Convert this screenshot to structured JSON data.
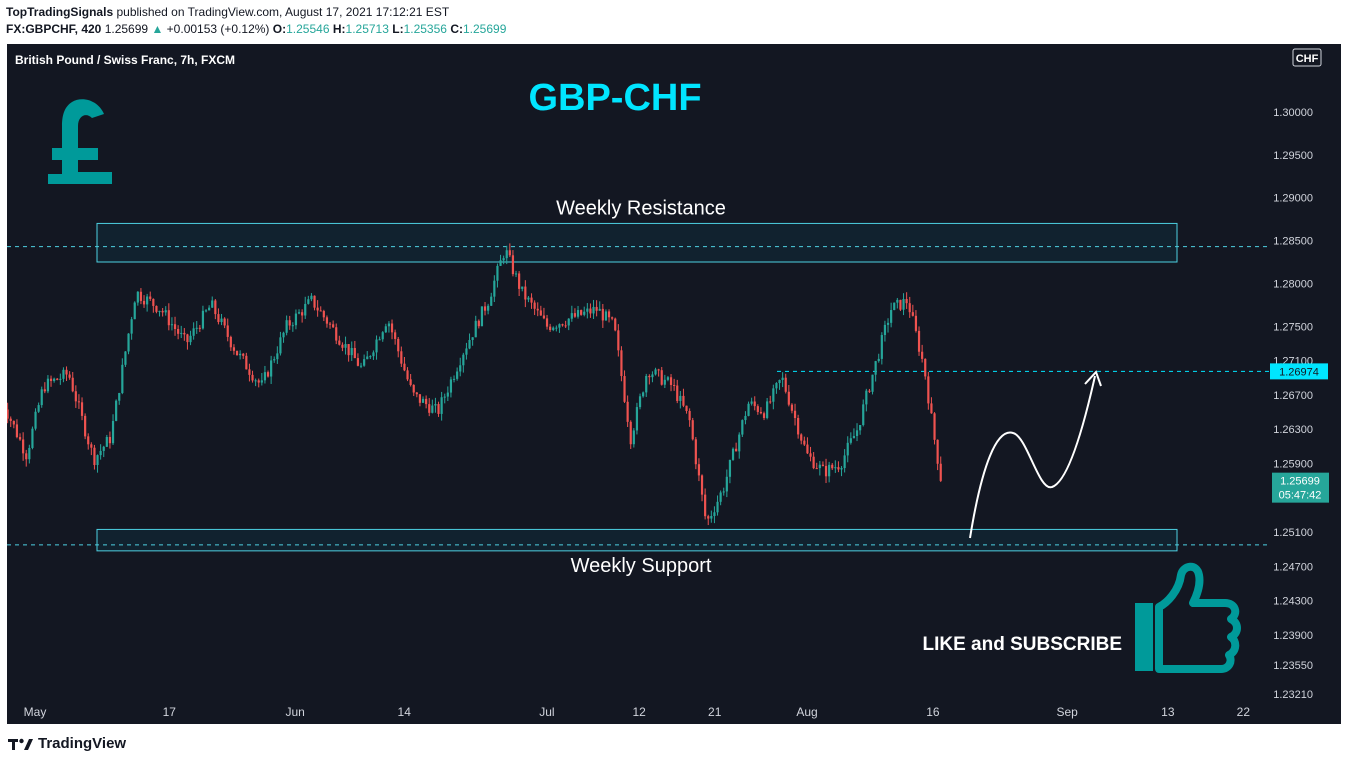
{
  "header": {
    "author": "TopTradingSignals",
    "published_text": "published on TradingView.com, August 17, 2021 17:12:21 EST",
    "symbol": "FX:GBPCHF, 420",
    "last": "1.25699",
    "change_arrow": "▲",
    "change": "+0.00153 (+0.12%)",
    "o_label": "O:",
    "o_value": "1.25546",
    "h_label": "H:",
    "h_value": "1.25713",
    "l_label": "L:",
    "l_value": "1.25356",
    "c_label": "C:",
    "c_value": "1.25699"
  },
  "chart_data": {
    "type": "candlestick",
    "instrument_label": "British Pound / Swiss Franc, 7h, FXCM",
    "title": "GBP-CHF",
    "currency_badge": "CHF",
    "y_range": [
      1.2321,
      1.3063
    ],
    "y_ticks": [
      "1.30000",
      "1.29500",
      "1.29000",
      "1.28500",
      "1.28000",
      "1.27500",
      "1.27100",
      "1.26700",
      "1.26300",
      "1.25900",
      "1.25500",
      "1.25100",
      "1.24700",
      "1.24300",
      "1.23900",
      "1.23550",
      "1.23210"
    ],
    "x_ticks": [
      {
        "label": "May",
        "date": "2021-05-01"
      },
      {
        "label": "17",
        "date": "2021-05-17"
      },
      {
        "label": "Jun",
        "date": "2021-06-01"
      },
      {
        "label": "14",
        "date": "2021-06-14"
      },
      {
        "label": "Jul",
        "date": "2021-07-01"
      },
      {
        "label": "12",
        "date": "2021-07-12"
      },
      {
        "label": "21",
        "date": "2021-07-21"
      },
      {
        "label": "Aug",
        "date": "2021-08-01"
      },
      {
        "label": "16",
        "date": "2021-08-16"
      },
      {
        "label": "Sep",
        "date": "2021-09-01"
      },
      {
        "label": "13",
        "date": "2021-09-13"
      },
      {
        "label": "22",
        "date": "2021-09-22"
      }
    ],
    "price_path": [
      {
        "date": "2021-04-27",
        "close": 1.2665
      },
      {
        "date": "2021-04-30",
        "close": 1.26
      },
      {
        "date": "2021-05-02",
        "close": 1.268
      },
      {
        "date": "2021-05-05",
        "close": 1.2695
      },
      {
        "date": "2021-05-08",
        "close": 1.2595
      },
      {
        "date": "2021-05-10",
        "close": 1.262
      },
      {
        "date": "2021-05-13",
        "close": 1.279
      },
      {
        "date": "2021-05-16",
        "close": 1.277
      },
      {
        "date": "2021-05-19",
        "close": 1.273
      },
      {
        "date": "2021-05-22",
        "close": 1.2775
      },
      {
        "date": "2021-05-25",
        "close": 1.272
      },
      {
        "date": "2021-05-28",
        "close": 1.268
      },
      {
        "date": "2021-05-31",
        "close": 1.275
      },
      {
        "date": "2021-06-03",
        "close": 1.278
      },
      {
        "date": "2021-06-06",
        "close": 1.274
      },
      {
        "date": "2021-06-09",
        "close": 1.27
      },
      {
        "date": "2021-06-12",
        "close": 1.276
      },
      {
        "date": "2021-06-15",
        "close": 1.267
      },
      {
        "date": "2021-06-18",
        "close": 1.265
      },
      {
        "date": "2021-06-21",
        "close": 1.272
      },
      {
        "date": "2021-06-24",
        "close": 1.278
      },
      {
        "date": "2021-06-26",
        "close": 1.284
      },
      {
        "date": "2021-06-28",
        "close": 1.279
      },
      {
        "date": "2021-07-01",
        "close": 1.275
      },
      {
        "date": "2021-07-04",
        "close": 1.276
      },
      {
        "date": "2021-07-07",
        "close": 1.277
      },
      {
        "date": "2021-07-09",
        "close": 1.275
      },
      {
        "date": "2021-07-11",
        "close": 1.262
      },
      {
        "date": "2021-07-13",
        "close": 1.27
      },
      {
        "date": "2021-07-16",
        "close": 1.268
      },
      {
        "date": "2021-07-18",
        "close": 1.264
      },
      {
        "date": "2021-07-20",
        "close": 1.252
      },
      {
        "date": "2021-07-22",
        "close": 1.256
      },
      {
        "date": "2021-07-25",
        "close": 1.266
      },
      {
        "date": "2021-07-27",
        "close": 1.265
      },
      {
        "date": "2021-07-29",
        "close": 1.269
      },
      {
        "date": "2021-08-01",
        "close": 1.26
      },
      {
        "date": "2021-08-03",
        "close": 1.258
      },
      {
        "date": "2021-08-05",
        "close": 1.259
      },
      {
        "date": "2021-08-07",
        "close": 1.263
      },
      {
        "date": "2021-08-09",
        "close": 1.27
      },
      {
        "date": "2021-08-11",
        "close": 1.277
      },
      {
        "date": "2021-08-13",
        "close": 1.278
      },
      {
        "date": "2021-08-15",
        "close": 1.27
      },
      {
        "date": "2021-08-16",
        "close": 1.263
      },
      {
        "date": "2021-08-17",
        "close": 1.257
      }
    ],
    "resistance_zone": {
      "label": "Weekly Resistance",
      "from": 1.2825,
      "to": 1.287,
      "line": 1.2843
    },
    "support_zone": {
      "label": "Weekly Support",
      "from": 1.2488,
      "to": 1.2513,
      "line": 1.2495
    },
    "horizontal_line": {
      "value": 1.26974,
      "label": "1.26974"
    },
    "last_price": {
      "value": 1.25699,
      "label": "1.25699",
      "countdown": "05:47:42"
    },
    "annotation": "LIKE and SUBSCRIBE"
  },
  "colors": {
    "background": "#131722",
    "up": "#26a69a",
    "down": "#ef5350",
    "cyan": "#00e5ff",
    "zone_border": "#4dd0e1",
    "logo_teal": "#009a9a",
    "last_badge": "#26a69a"
  },
  "icons": {
    "currency": "pound-sign-icon",
    "thumb": "thumbs-up-icon",
    "brand": "tradingview-logo-icon"
  },
  "footer": {
    "brand": "TradingView"
  }
}
